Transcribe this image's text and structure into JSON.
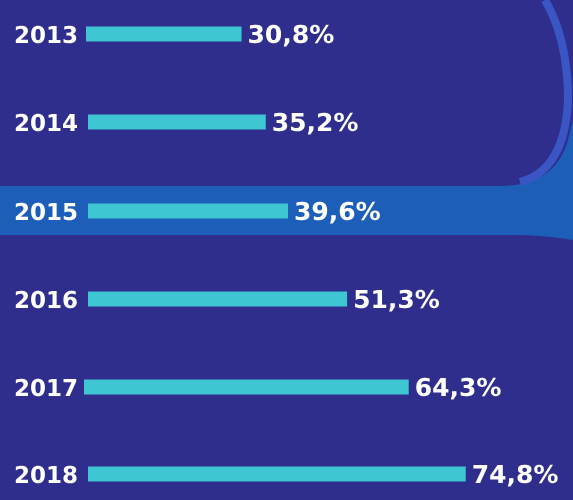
{
  "colors": {
    "background": "#2f2e8c",
    "accent_band": "#1d5fb8",
    "bar": "#3ec6d3",
    "text": "#ffffff"
  },
  "chart_data": {
    "type": "bar",
    "orientation": "horizontal",
    "categories": [
      "2013",
      "2014",
      "2015",
      "2016",
      "2017",
      "2018"
    ],
    "values": [
      30.8,
      35.2,
      39.6,
      51.3,
      64.3,
      74.8
    ],
    "value_labels": [
      "30,8%",
      "35,2%",
      "39,6%",
      "51,3%",
      "64,3%",
      "74,8%"
    ],
    "unit": "%",
    "grid": false,
    "legend": "none"
  }
}
